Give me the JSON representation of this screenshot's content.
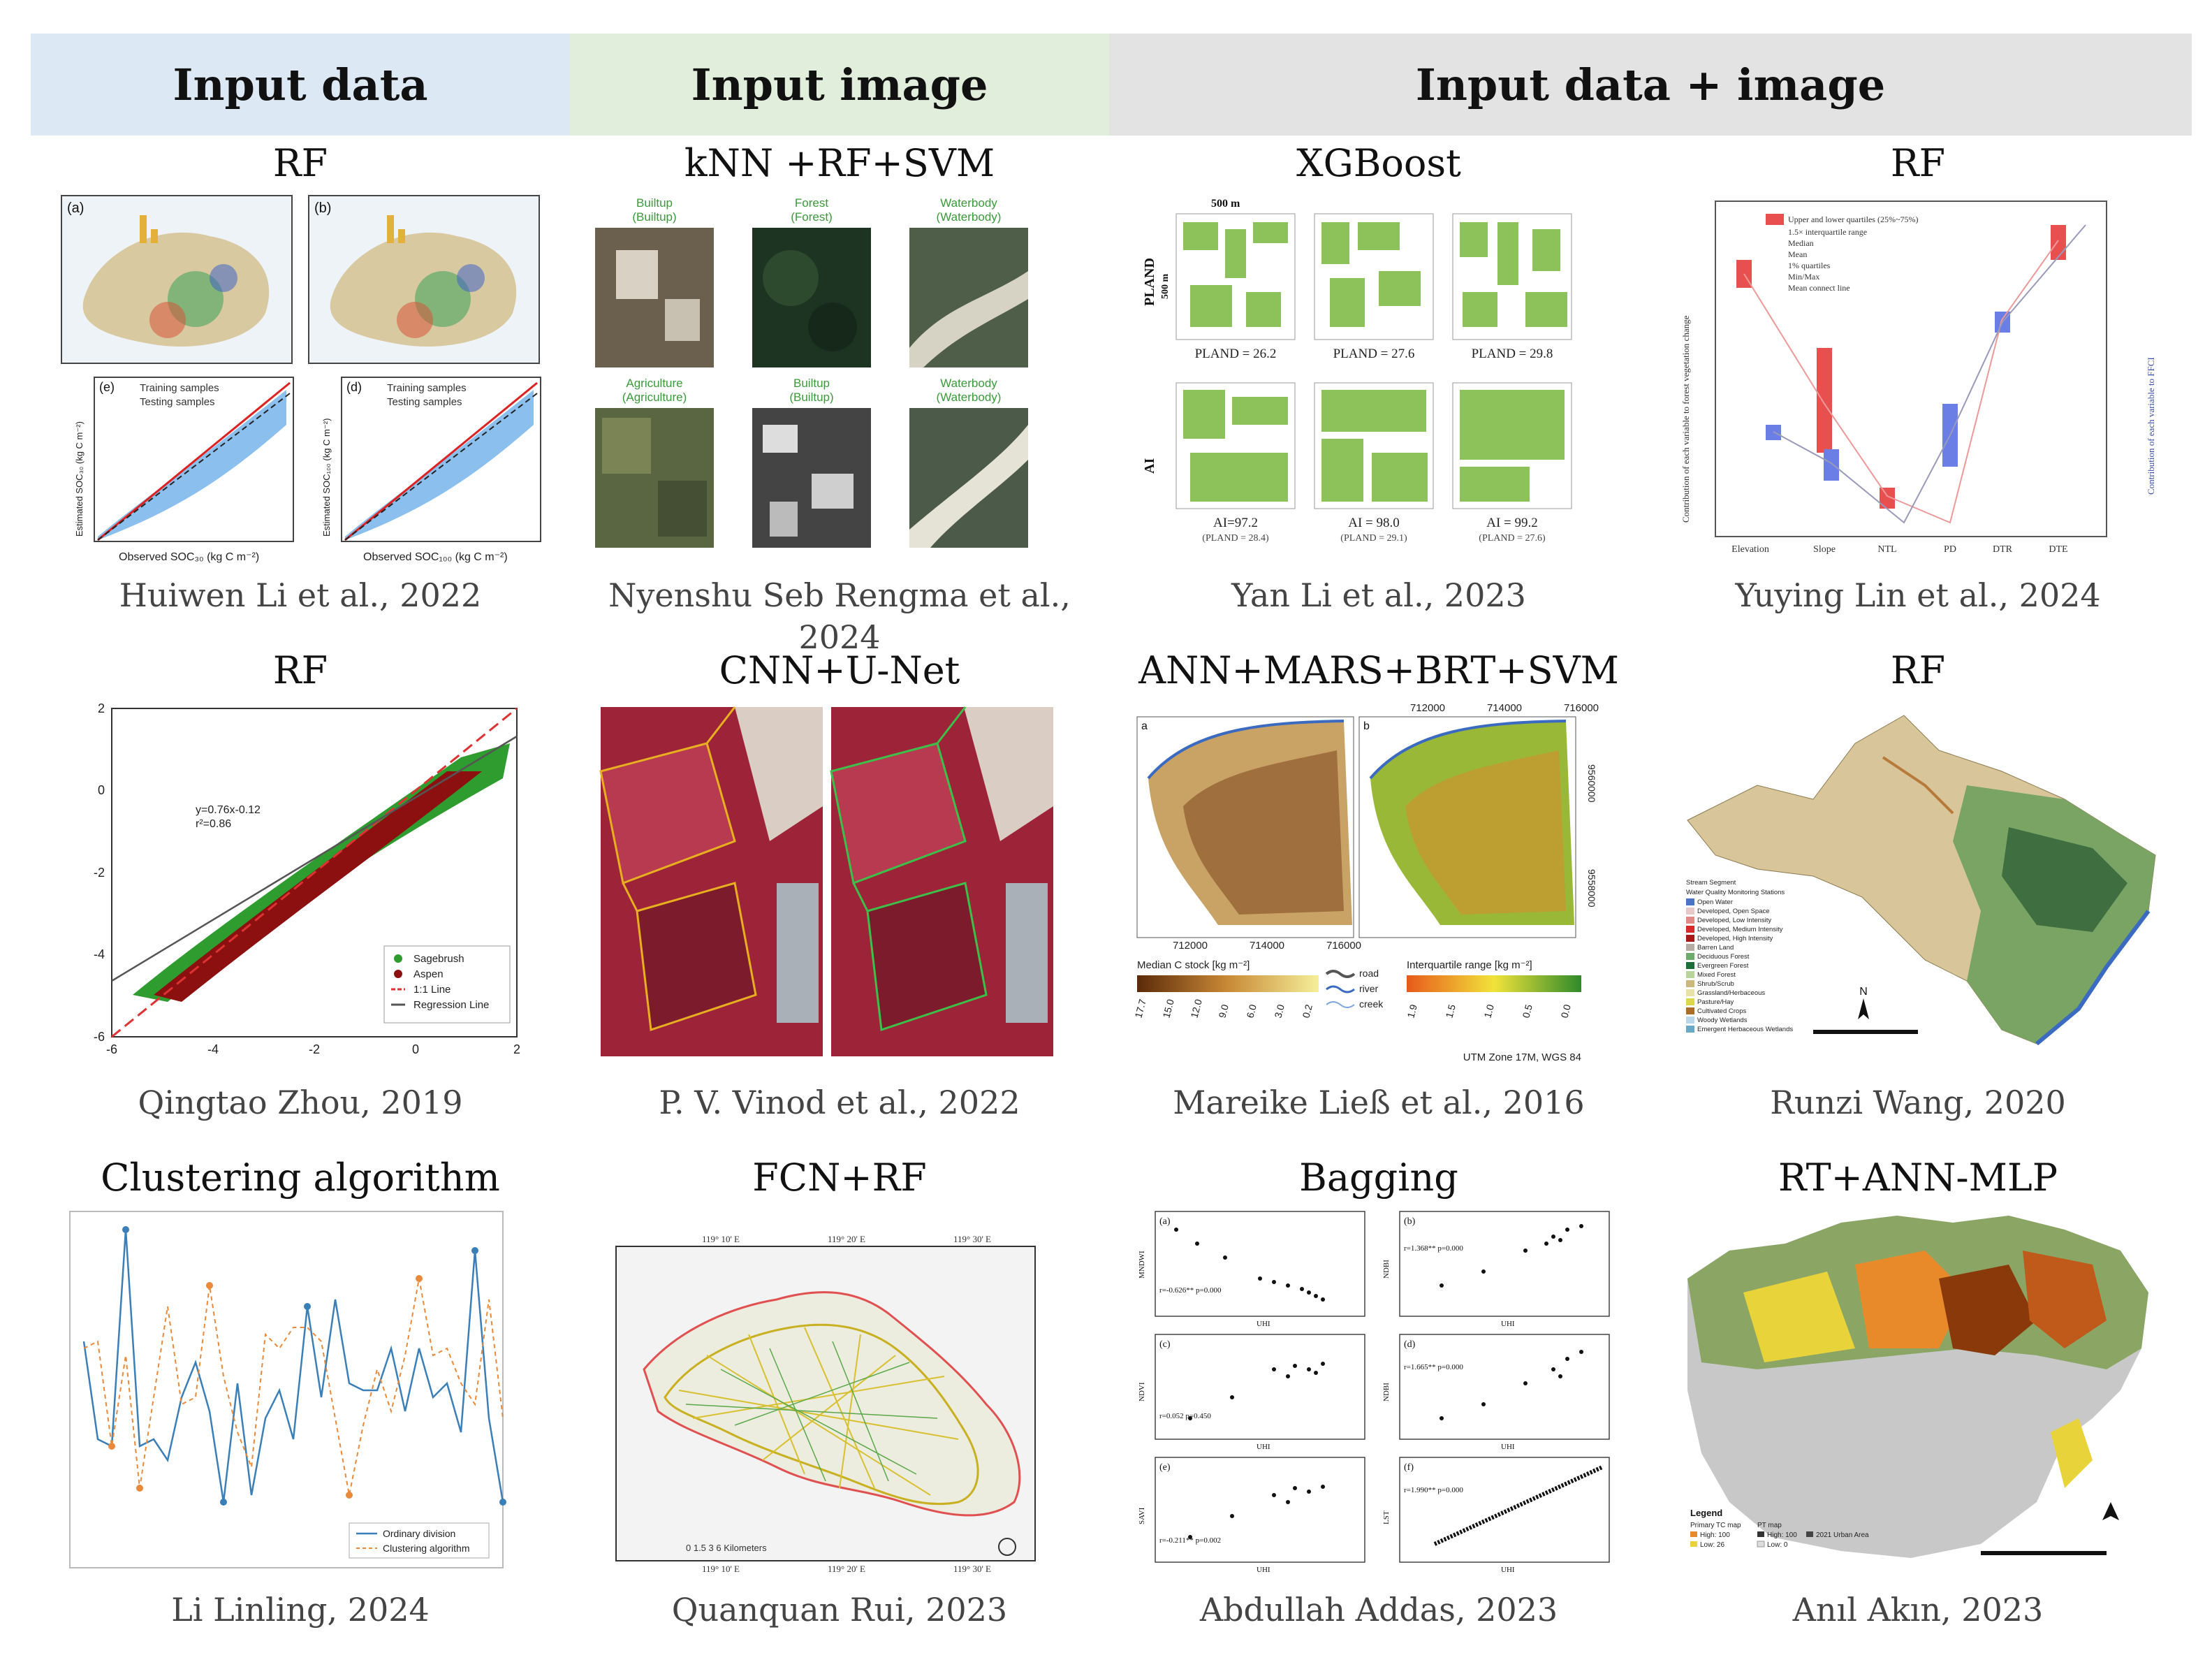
{
  "headers": [
    "Input data",
    "Input image",
    "Input data + image"
  ],
  "cells": [
    {
      "method": "RF",
      "author": "Huiwen Li et al., 2022"
    },
    {
      "method": "kNN +RF+SVM",
      "author": "Nyenshu Seb Rengma et al., 2024"
    },
    {
      "method": "XGBoost",
      "author": "Yan Li et al., 2023"
    },
    {
      "method": "RF",
      "author": "Yuying Lin et al., 2024"
    },
    {
      "method": "RF",
      "author": "Qingtao Zhou, 2019"
    },
    {
      "method": "CNN+U-Net",
      "author": "P. V. Vinod et al., 2022"
    },
    {
      "method": "ANN+MARS+BRT+SVM",
      "author": "Mareike Ließ et al., 2016"
    },
    {
      "method": "RF",
      "author": "Runzi Wang, 2020"
    },
    {
      "method": "Clustering algorithm",
      "author": "Li Linling, 2024"
    },
    {
      "method": "FCN+RF",
      "author": "Quanquan Rui, 2023"
    },
    {
      "method": "Bagging",
      "author": "Abdullah Addas, 2023"
    },
    {
      "method": "RT+ANN-MLP",
      "author": "Anıl Akın, 2023"
    }
  ],
  "figures": {
    "li2022": {
      "labels": [
        "(a)",
        "(b)",
        "(e)",
        "(d)"
      ],
      "legend": [
        "Training samples",
        "Testing samples"
      ],
      "xlabel": "Observed SOC₃₀ (kg C m⁻²)",
      "xlabel2": "Observed SOC₁₀₀ (kg C m⁻²)",
      "ylabel": "Estimated SOC₃₀ (kg C m⁻²)",
      "ylabel2": "Estimated SOC₁₀₀ (kg C m⁻²)"
    },
    "rengma": {
      "tiles": [
        "Builtup",
        "Forest",
        "Waterbody",
        "Agriculture",
        "Builtup",
        "Waterbody"
      ],
      "subtitles": [
        "(Builtup)",
        "(Forest)",
        "(Waterbody)",
        "(Agriculture)",
        "(Builtup)",
        "(Waterbody)"
      ]
    },
    "yanli": {
      "row_labels": [
        "PLAND",
        "AI"
      ],
      "scale": "500 m",
      "scale_v": "500 m",
      "captions": [
        "PLAND = 26.2",
        "PLAND = 27.6",
        "PLAND = 29.8",
        "AI=97.2",
        "AI = 98.0",
        "AI = 99.2"
      ],
      "sub": [
        "(PLAND = 28.4)",
        "(PLAND = 29.1)",
        "(PLAND = 27.6)"
      ]
    },
    "lin": {
      "categories": [
        "Elevation",
        "Slope",
        "NTL",
        "PD",
        "DTR",
        "DTE"
      ],
      "legend": [
        "Upper and lower quartiles (25%~75%)",
        "1.5× interquartile range",
        "Median",
        "Mean",
        "1% quartiles",
        "Min/Max",
        "Mean connect line"
      ],
      "ylabel_left": "Contribution of each variable to forest vegetation change",
      "ylabel_right": "Contribution of each variable to FFCI"
    },
    "zhou": {
      "x_ticks": [
        "-6",
        "-4",
        "-2",
        "0",
        "2"
      ],
      "y_ticks": [
        "2",
        "0",
        "-2",
        "-4",
        "-6"
      ],
      "equation": "y=0.76x-0.12",
      "r2": "r²=0.86",
      "legend": [
        "Sagebrush",
        "Aspen",
        "1:1 Line",
        "Regression Line"
      ]
    },
    "liess": {
      "panels": [
        "a",
        "b"
      ],
      "x_ticks": [
        "712000",
        "714000",
        "716000"
      ],
      "y_ticks": [
        "9560000",
        "9558000"
      ],
      "legend_left": "Median C stock [kg m⁻²]",
      "legend_left_ticks": [
        "17.7",
        "15.0",
        "12.0",
        "9.0",
        "6.0",
        "3.0",
        "0.2"
      ],
      "legend_mid": [
        "road",
        "river",
        "creek"
      ],
      "legend_right": "Interquartile range [kg m⁻²]",
      "legend_right_ticks": [
        "1.9",
        "1.5",
        "1.0",
        "0.5",
        "0.0"
      ],
      "crs": "UTM Zone 17M, WGS 84"
    },
    "wang": {
      "legend": [
        "Stream Segment",
        "Water Quality Monitoring Stations",
        "Open Water",
        "Developed, Open Space",
        "Developed, Low Intensity",
        "Developed, Medium Intensity",
        "Developed, High Intensity",
        "Barren Land",
        "Deciduous Forest",
        "Evergreen Forest",
        "Mixed Forest",
        "Shrub/Scrub",
        "Grassland/Herbaceous",
        "Pasture/Hay",
        "Cultivated Crops",
        "Woody Wetlands",
        "Emergent Herbaceous Wetlands"
      ],
      "north": "N"
    },
    "linling": {
      "legend": [
        "Ordinary division",
        "Clustering algorithm"
      ]
    },
    "rui": {
      "top_ticks": [
        "119° 10' E",
        "119° 20' E",
        "119° 30' E"
      ],
      "bottom_ticks": [
        "119° 10' E",
        "119° 20' E",
        "119° 30' E"
      ],
      "scale": "0 1.5 3   6 Kilometers"
    },
    "addas": {
      "panels": [
        "(a)",
        "(b)",
        "(c)",
        "(d)",
        "(e)",
        "(f)"
      ],
      "ylabels": [
        "MNDWI",
        "NDBI",
        "NDVI",
        "NDBI",
        "SAVI",
        "LST"
      ],
      "xlabel": "UHI",
      "stats": [
        "r=-0.626** p=0.000",
        "r=1.368** p=0.000",
        "r=0.052 p=0.450",
        "r=1.665** p=0.000",
        "r=-0.211** p=0.002",
        "r=1.990** p=0.000"
      ]
    },
    "akin": {
      "legend_title": "Legend",
      "legend": [
        "Primary TC map",
        "High: 100",
        "Low: 26",
        "PT map",
        "High: 100",
        "Low: 0",
        "2021 Urban Area"
      ]
    }
  },
  "colors": {
    "header_blue": "#dce8f4",
    "header_green": "#e1eedb",
    "header_grey": "#e3e3e3"
  }
}
